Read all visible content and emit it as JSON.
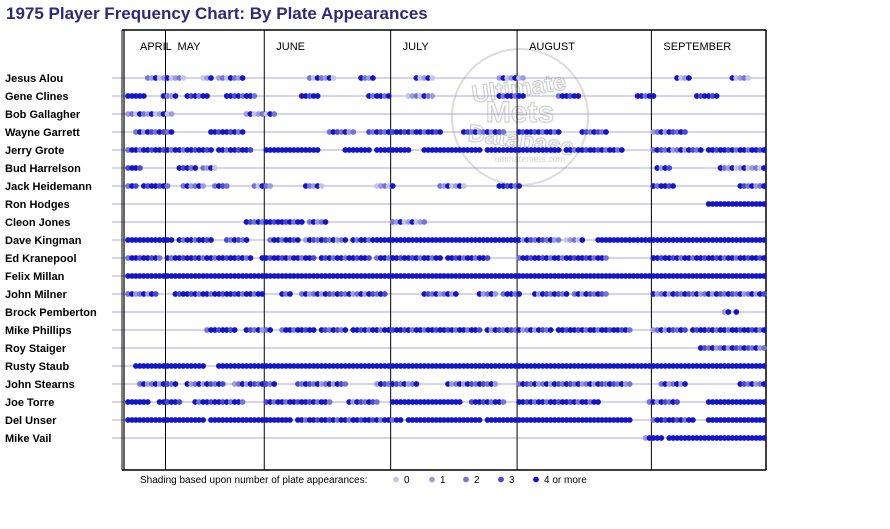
{
  "title": "1975 Player Frequency Chart: By Plate Appearances",
  "watermark": {
    "top": "Ultimate",
    "middle": "Mets",
    "bottom": "Database",
    "url": "ultimatemets.com"
  },
  "colors": {
    "0": "#c4c4ec",
    "1": "#9c9ce4",
    "2": "#7474d8",
    "3": "#4848d0",
    "4": "#1414c8",
    "title": "#2e2a7a"
  },
  "legend": {
    "prefix": "Shading based upon number of plate appearances:",
    "items": [
      {
        "label": "0",
        "level": 0
      },
      {
        "label": "1",
        "level": 1
      },
      {
        "label": "2",
        "level": 2
      },
      {
        "label": "3",
        "level": 3
      },
      {
        "label": "4 or more",
        "level": 4
      }
    ]
  },
  "chart_data": {
    "type": "scatter",
    "title": "1975 Player Frequency Chart: By Plate Appearances",
    "x_unit": "game number",
    "x_range": [
      1,
      162
    ],
    "value_scale": "plate appearances per game (0, 1, 2, 3, 4 or more)",
    "months": [
      {
        "name": "APRIL",
        "start_game": 1
      },
      {
        "name": "MAY",
        "start_game": 11
      },
      {
        "name": "JUNE",
        "start_game": 36
      },
      {
        "name": "JULY",
        "start_game": 68
      },
      {
        "name": "AUGUST",
        "start_game": 100
      },
      {
        "name": "SEPTEMBER",
        "start_game": 134
      }
    ],
    "players": [
      {
        "name": "Jesus Alou",
        "segments": [
          [
            6,
            15,
            "mix_low"
          ],
          [
            20,
            22,
            "mix_low"
          ],
          [
            24,
            30,
            "mix_low"
          ],
          [
            47,
            53,
            "mix_low"
          ],
          [
            60,
            63,
            "mix_low"
          ],
          [
            74,
            78,
            "mix_low"
          ],
          [
            95,
            101,
            "mix_low"
          ],
          [
            140,
            143,
            "mix_low"
          ],
          [
            154,
            158,
            "mix_low"
          ]
        ]
      },
      {
        "name": "Gene Clines",
        "segments": [
          [
            1,
            5,
            "high"
          ],
          [
            10,
            13,
            "mix_low"
          ],
          [
            16,
            21,
            "mix_high"
          ],
          [
            26,
            33,
            "mix_high"
          ],
          [
            45,
            49,
            "mix_high"
          ],
          [
            62,
            67,
            "mix_high"
          ],
          [
            72,
            78,
            "mix_low"
          ],
          [
            95,
            101,
            "mix_high"
          ],
          [
            110,
            115,
            "mix_high"
          ],
          [
            130,
            134,
            "mix_high"
          ],
          [
            145,
            150,
            "mix_high"
          ]
        ]
      },
      {
        "name": "Bob Gallagher",
        "segments": [
          [
            1,
            12,
            "mix_low"
          ],
          [
            31,
            38,
            "mix_low"
          ]
        ]
      },
      {
        "name": "Wayne Garrett",
        "segments": [
          [
            3,
            12,
            "mix_mid"
          ],
          [
            22,
            30,
            "mix_high"
          ],
          [
            52,
            58,
            "mix_mid"
          ],
          [
            62,
            68,
            "mix_mid"
          ],
          [
            68,
            80,
            "mix_high"
          ],
          [
            86,
            96,
            "mix_mid"
          ],
          [
            100,
            110,
            "mix_high"
          ],
          [
            116,
            122,
            "mix_mid"
          ],
          [
            134,
            142,
            "mix_mid"
          ]
        ]
      },
      {
        "name": "Jerry Grote",
        "segments": [
          [
            1,
            22,
            "mix_high"
          ],
          [
            24,
            32,
            "mix_high"
          ],
          [
            36,
            49,
            "high"
          ],
          [
            56,
            62,
            "high"
          ],
          [
            64,
            72,
            "high"
          ],
          [
            76,
            90,
            "high"
          ],
          [
            92,
            110,
            "high"
          ],
          [
            112,
            126,
            "mix_high"
          ],
          [
            134,
            146,
            "mix_mid"
          ],
          [
            148,
            162,
            "mix_high"
          ]
        ]
      },
      {
        "name": "Bud Harrelson",
        "segments": [
          [
            1,
            4,
            "mix_high"
          ],
          [
            14,
            18,
            "mix_high"
          ],
          [
            20,
            23,
            "mix_low"
          ],
          [
            135,
            138,
            "mix_mid"
          ],
          [
            151,
            162,
            "mix_low"
          ]
        ]
      },
      {
        "name": "Jack Heidemann",
        "segments": [
          [
            1,
            3,
            "mix_mid"
          ],
          [
            5,
            11,
            "mix_high"
          ],
          [
            15,
            20,
            "mix_mid"
          ],
          [
            23,
            26,
            "mix_mid"
          ],
          [
            33,
            37,
            "mix_low"
          ],
          [
            46,
            50,
            "mix_low"
          ],
          [
            64,
            68,
            "mix_low"
          ],
          [
            80,
            86,
            "mix_low"
          ],
          [
            95,
            100,
            "mix_high"
          ],
          [
            134,
            139,
            "mix_high"
          ],
          [
            156,
            162,
            "mix_mid"
          ]
        ]
      },
      {
        "name": "Ron Hodges",
        "segments": [
          [
            148,
            162,
            "high"
          ]
        ]
      },
      {
        "name": "Cleon Jones",
        "segments": [
          [
            31,
            34,
            "mix_mid"
          ],
          [
            35,
            45,
            "mix_high"
          ],
          [
            47,
            51,
            "mix_mid"
          ],
          [
            68,
            76,
            "mix_low"
          ]
        ]
      },
      {
        "name": "Dave Kingman",
        "segments": [
          [
            1,
            12,
            "high"
          ],
          [
            14,
            22,
            "mix_high"
          ],
          [
            26,
            31,
            "mix_mid"
          ],
          [
            37,
            44,
            "mix_high"
          ],
          [
            46,
            56,
            "mix_mid"
          ],
          [
            58,
            63,
            "mix_high"
          ],
          [
            64,
            99,
            "high"
          ],
          [
            100,
            110,
            "mix_mid"
          ],
          [
            112,
            116,
            "mix_low"
          ],
          [
            120,
            162,
            "high"
          ]
        ]
      },
      {
        "name": "Ed Kranepool",
        "segments": [
          [
            1,
            9,
            "mix_high"
          ],
          [
            11,
            32,
            "mix_high"
          ],
          [
            35,
            48,
            "mix_high"
          ],
          [
            50,
            62,
            "mix_high"
          ],
          [
            64,
            80,
            "mix_high"
          ],
          [
            82,
            92,
            "mix_high"
          ],
          [
            100,
            122,
            "mix_high"
          ],
          [
            134,
            162,
            "mix_high"
          ]
        ]
      },
      {
        "name": "Felix Millan",
        "segments": [
          [
            1,
            162,
            "high"
          ]
        ]
      },
      {
        "name": "John Milner",
        "segments": [
          [
            1,
            8,
            "mix_mid"
          ],
          [
            13,
            35,
            "mix_high"
          ],
          [
            40,
            42,
            "mix_high"
          ],
          [
            45,
            66,
            "mix_mid"
          ],
          [
            76,
            84,
            "mix_mid"
          ],
          [
            90,
            94,
            "mix_mid"
          ],
          [
            96,
            100,
            "mix_high"
          ],
          [
            104,
            112,
            "mix_mid"
          ],
          [
            114,
            122,
            "mix_mid"
          ],
          [
            134,
            162,
            "mix_mid"
          ]
        ]
      },
      {
        "name": "Brock Pemberton",
        "segments": [
          [
            152,
            153,
            "mix_low"
          ],
          [
            155,
            155,
            "mix_mid"
          ]
        ]
      },
      {
        "name": "Mike Phillips",
        "segments": [
          [
            21,
            28,
            "mix_high"
          ],
          [
            31,
            37,
            "mix_mid"
          ],
          [
            40,
            48,
            "mix_high"
          ],
          [
            50,
            56,
            "mix_mid"
          ],
          [
            58,
            90,
            "mix_high"
          ],
          [
            92,
            108,
            "mix_mid"
          ],
          [
            110,
            128,
            "mix_high"
          ],
          [
            134,
            142,
            "mix_mid"
          ],
          [
            144,
            162,
            "mix_high"
          ]
        ]
      },
      {
        "name": "Roy Staiger",
        "segments": [
          [
            146,
            162,
            "mix_mid"
          ]
        ]
      },
      {
        "name": "Rusty Staub",
        "segments": [
          [
            3,
            20,
            "high"
          ],
          [
            24,
            162,
            "high"
          ]
        ]
      },
      {
        "name": "John Stearns",
        "segments": [
          [
            4,
            13,
            "mix_mid"
          ],
          [
            16,
            25,
            "mix_mid"
          ],
          [
            28,
            38,
            "mix_mid"
          ],
          [
            44,
            56,
            "mix_mid"
          ],
          [
            64,
            74,
            "mix_mid"
          ],
          [
            82,
            94,
            "mix_mid"
          ],
          [
            100,
            128,
            "mix_mid"
          ],
          [
            136,
            142,
            "mix_mid"
          ],
          [
            156,
            162,
            "mix_mid"
          ]
        ]
      },
      {
        "name": "Joe Torre",
        "segments": [
          [
            1,
            6,
            "high"
          ],
          [
            9,
            14,
            "mix_high"
          ],
          [
            18,
            30,
            "mix_high"
          ],
          [
            36,
            52,
            "mix_high"
          ],
          [
            57,
            64,
            "mix_mid"
          ],
          [
            68,
            85,
            "high"
          ],
          [
            88,
            96,
            "mix_high"
          ],
          [
            100,
            120,
            "mix_high"
          ],
          [
            133,
            140,
            "mix_mid"
          ],
          [
            148,
            162,
            "high"
          ]
        ]
      },
      {
        "name": "Del Unser",
        "segments": [
          [
            1,
            20,
            "high"
          ],
          [
            22,
            42,
            "high"
          ],
          [
            44,
            70,
            "mix_high"
          ],
          [
            72,
            90,
            "high"
          ],
          [
            92,
            128,
            "high"
          ],
          [
            134,
            144,
            "mix_high"
          ],
          [
            148,
            162,
            "high"
          ]
        ]
      },
      {
        "name": "Mike Vail",
        "segments": [
          [
            132,
            133,
            "mix_low"
          ],
          [
            134,
            136,
            "high"
          ],
          [
            138,
            162,
            "high"
          ]
        ]
      }
    ]
  }
}
